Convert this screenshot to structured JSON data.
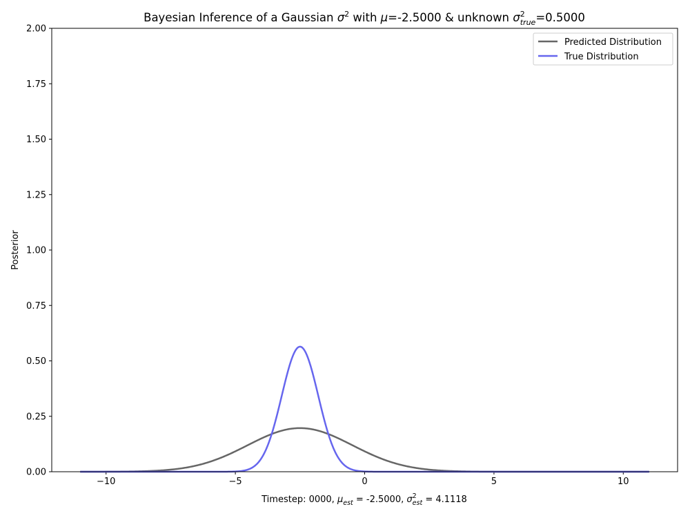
{
  "chart_data": {
    "type": "line",
    "title": {
      "prefix": "Bayesian Inference of a Gaussian ",
      "sigma": "σ",
      "sup2": "2",
      "mid": " with ",
      "mu": "μ",
      "mu_value": "=-2.5000 & unknown ",
      "true_sub": "true",
      "true_value": "=0.5000"
    },
    "xlabel": {
      "prefix": "Timestep: 0000, ",
      "mu": "μ",
      "est_sub": "est",
      "mu_eq": " = -2.5000, ",
      "sigma": "σ",
      "sup2": "2",
      "sigma_eq": " = 4.1118"
    },
    "ylabel": "Posterior",
    "xlim": [
      -12.1,
      12.1
    ],
    "ylim": [
      0,
      2.0
    ],
    "x_ticks": [
      -10,
      -5,
      0,
      5,
      10
    ],
    "x_tick_labels": [
      "−10",
      "−5",
      "0",
      "5",
      "10"
    ],
    "y_ticks": [
      0,
      0.25,
      0.5,
      0.75,
      1.0,
      1.25,
      1.5,
      1.75,
      2.0
    ],
    "y_tick_labels": [
      "0.00",
      "0.25",
      "0.50",
      "0.75",
      "1.00",
      "1.25",
      "1.50",
      "1.75",
      "2.00"
    ],
    "x_range": [
      -11,
      11
    ],
    "legend_position": "top-right",
    "series": [
      {
        "name": "Predicted Distribution",
        "color": "#666666",
        "distribution": "normal",
        "mean": -2.5,
        "variance": 4.1118
      },
      {
        "name": "True Distribution",
        "color": "#6666ee",
        "distribution": "normal",
        "mean": -2.5,
        "variance": 0.5
      }
    ]
  }
}
